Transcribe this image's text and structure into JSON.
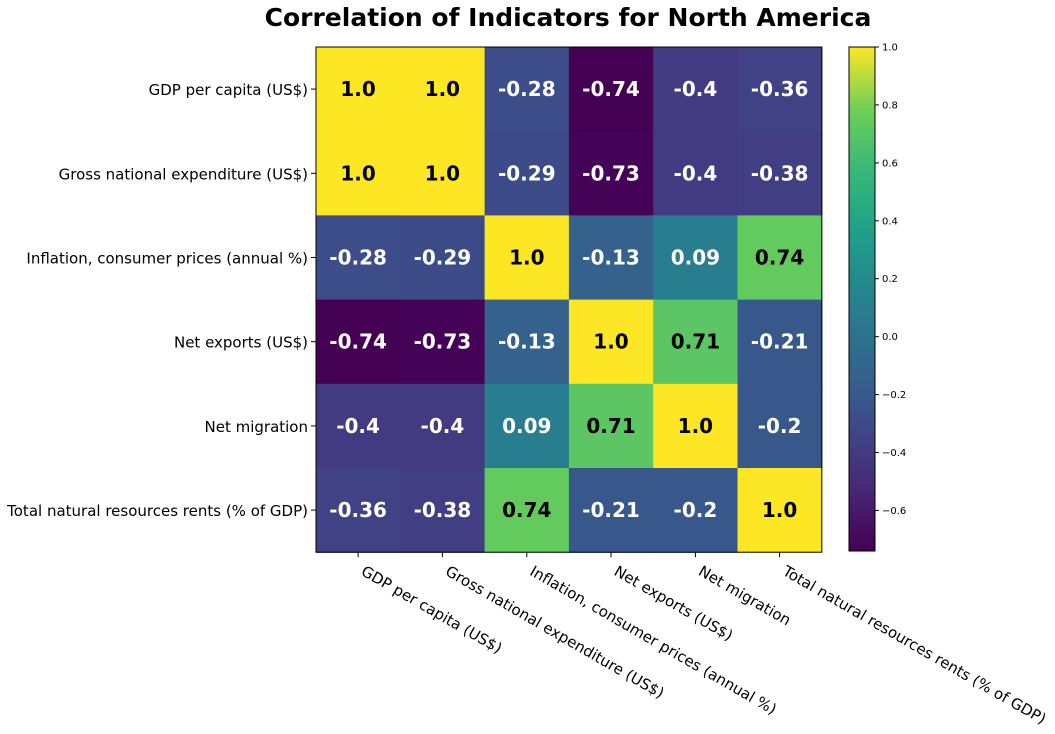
{
  "chart_data": {
    "type": "heatmap",
    "title": "Correlation of Indicators for North America",
    "xlabel": "",
    "ylabel": "",
    "labels": [
      "GDP per capita (US$)",
      "Gross national expenditure (US$)",
      "Inflation, consumer prices (annual %)",
      "Net exports (US$)",
      "Net migration",
      "Total natural resources rents (% of GDP)"
    ],
    "matrix": [
      [
        1.0,
        1.0,
        -0.28,
        -0.74,
        -0.4,
        -0.36
      ],
      [
        1.0,
        1.0,
        -0.29,
        -0.73,
        -0.4,
        -0.38
      ],
      [
        -0.28,
        -0.29,
        1.0,
        -0.13,
        0.09,
        0.74
      ],
      [
        -0.74,
        -0.73,
        -0.13,
        1.0,
        0.71,
        -0.21
      ],
      [
        -0.4,
        -0.4,
        0.09,
        0.71,
        1.0,
        -0.2
      ],
      [
        -0.36,
        -0.38,
        0.74,
        -0.21,
        -0.2,
        1.0
      ]
    ],
    "cell_labels": [
      [
        "1.0",
        "1.0",
        "-0.28",
        "-0.74",
        "-0.4",
        "-0.36"
      ],
      [
        "1.0",
        "1.0",
        "-0.29",
        "-0.73",
        "-0.4",
        "-0.38"
      ],
      [
        "-0.28",
        "-0.29",
        "1.0",
        "-0.13",
        "0.09",
        "0.74"
      ],
      [
        "-0.74",
        "-0.73",
        "-0.13",
        "1.0",
        "0.71",
        "-0.21"
      ],
      [
        "-0.4",
        "-0.4",
        "0.09",
        "0.71",
        "1.0",
        "-0.2"
      ],
      [
        "-0.36",
        "-0.38",
        "0.74",
        "-0.21",
        "-0.2",
        "1.0"
      ]
    ],
    "colormap": "viridis",
    "vmin": -0.74,
    "vmax": 1.0,
    "colorbar": {
      "ticks": [
        1.0,
        0.8,
        0.6,
        0.4,
        0.2,
        0.0,
        -0.2,
        -0.4,
        -0.6
      ],
      "tick_labels": [
        "1.0",
        "0.8",
        "0.6",
        "0.4",
        "0.2",
        "0.0",
        "−0.2",
        "−0.4",
        "−0.6"
      ]
    },
    "text_colors": {
      "on_light": "#000000",
      "on_dark": "#ffffff"
    },
    "grid": false,
    "legend": "colorbar-right"
  }
}
